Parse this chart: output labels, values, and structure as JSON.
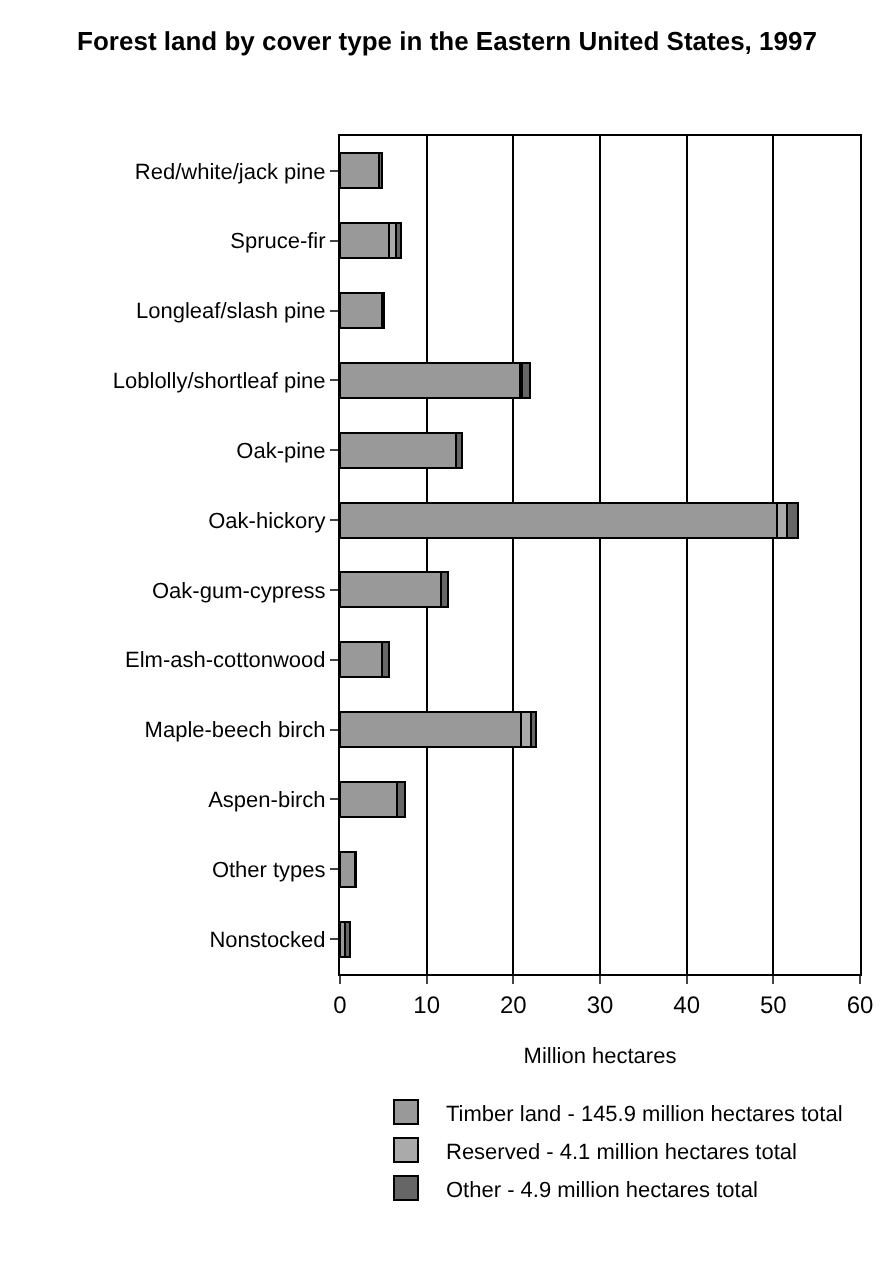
{
  "chart_data": {
    "type": "bar",
    "orientation": "horizontal",
    "stacked": true,
    "title": "Forest land by cover type in the Eastern United States, 1997",
    "xlabel": "Million hectares",
    "categories": [
      "Red/white/jack pine",
      "Spruce-fir",
      "Longleaf/slash pine",
      "Loblolly/shortleaf pine",
      "Oak-pine",
      "Oak-hickory",
      "Oak-gum-cypress",
      "Elm-ash-cottonwood",
      "Maple-beech birch",
      "Aspen-birch",
      "Other types",
      "Nonstocked"
    ],
    "series": [
      {
        "name": "Timber land - 145.9 million hectares total",
        "color": "#999999",
        "values": [
          4.5,
          5.7,
          4.8,
          20.8,
          13.4,
          50.4,
          11.7,
          4.9,
          20.9,
          6.6,
          1.7,
          0.6
        ]
      },
      {
        "name": "Reserved - 4.1 million hectares total",
        "color": "#aaaaaa",
        "values": [
          null,
          0.8,
          null,
          0.2,
          null,
          1.2,
          null,
          null,
          1.1,
          null,
          null,
          null
        ]
      },
      {
        "name": "Other - 4.9 million hectares total",
        "color": "#666666",
        "values": [
          0.3,
          0.5,
          0.3,
          0.9,
          0.7,
          1.3,
          0.8,
          0.8,
          0.6,
          0.9,
          0.2,
          0.5
        ]
      }
    ],
    "xlim": [
      0,
      60
    ],
    "xticks": [
      0,
      10,
      20,
      30,
      40,
      50,
      60
    ],
    "grid": "x",
    "legend": "bottom"
  }
}
